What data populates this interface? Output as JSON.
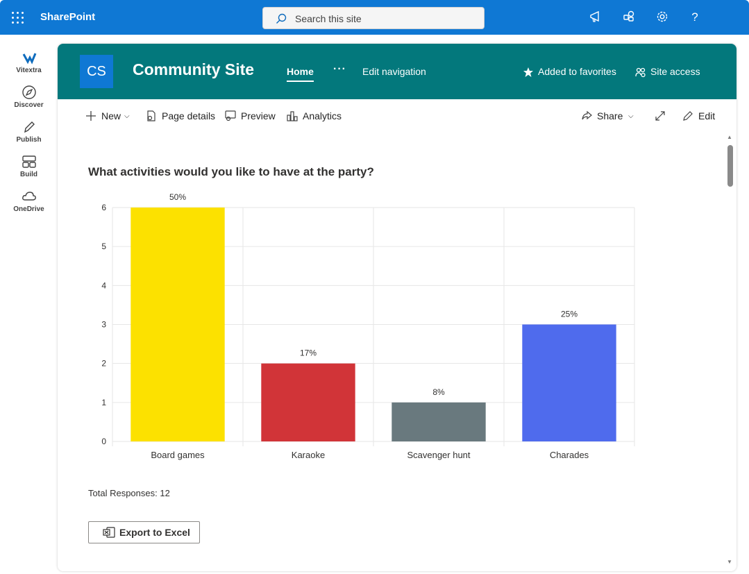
{
  "suite": {
    "brand": "SharePoint",
    "search_placeholder": "Search this site"
  },
  "rail": {
    "items": [
      {
        "label": "Vitextra"
      },
      {
        "label": "Discover"
      },
      {
        "label": "Publish"
      },
      {
        "label": "Build"
      },
      {
        "label": "OneDrive"
      }
    ]
  },
  "site": {
    "logo_text": "CS",
    "title": "Community Site",
    "nav": {
      "home": "Home",
      "more": "···",
      "edit": "Edit navigation"
    },
    "favorites": "Added to favorites",
    "access": "Site access"
  },
  "commandbar": {
    "new": "New",
    "page_details": "Page details",
    "preview": "Preview",
    "analytics": "Analytics",
    "share": "Share",
    "edit": "Edit"
  },
  "colors": {
    "suite_blue": "#0f78d4",
    "site_teal": "#03787c"
  },
  "chart_data": {
    "type": "bar",
    "title": "What activities would you like to have at the party?",
    "categories": [
      "Board games",
      "Karaoke",
      "Scavenger hunt",
      "Charades"
    ],
    "values": [
      6,
      2,
      1,
      3
    ],
    "data_labels": [
      "50%",
      "17%",
      "8%",
      "25%"
    ],
    "colors": [
      "#fce100",
      "#d13438",
      "#69797e",
      "#4f6bed"
    ],
    "ylim": [
      0,
      6
    ],
    "yticks": [
      "0",
      "1",
      "2",
      "3",
      "4",
      "5",
      "6"
    ],
    "grid": true
  },
  "total_responses": "Total Responses: 12",
  "export_label": "Export to Excel"
}
